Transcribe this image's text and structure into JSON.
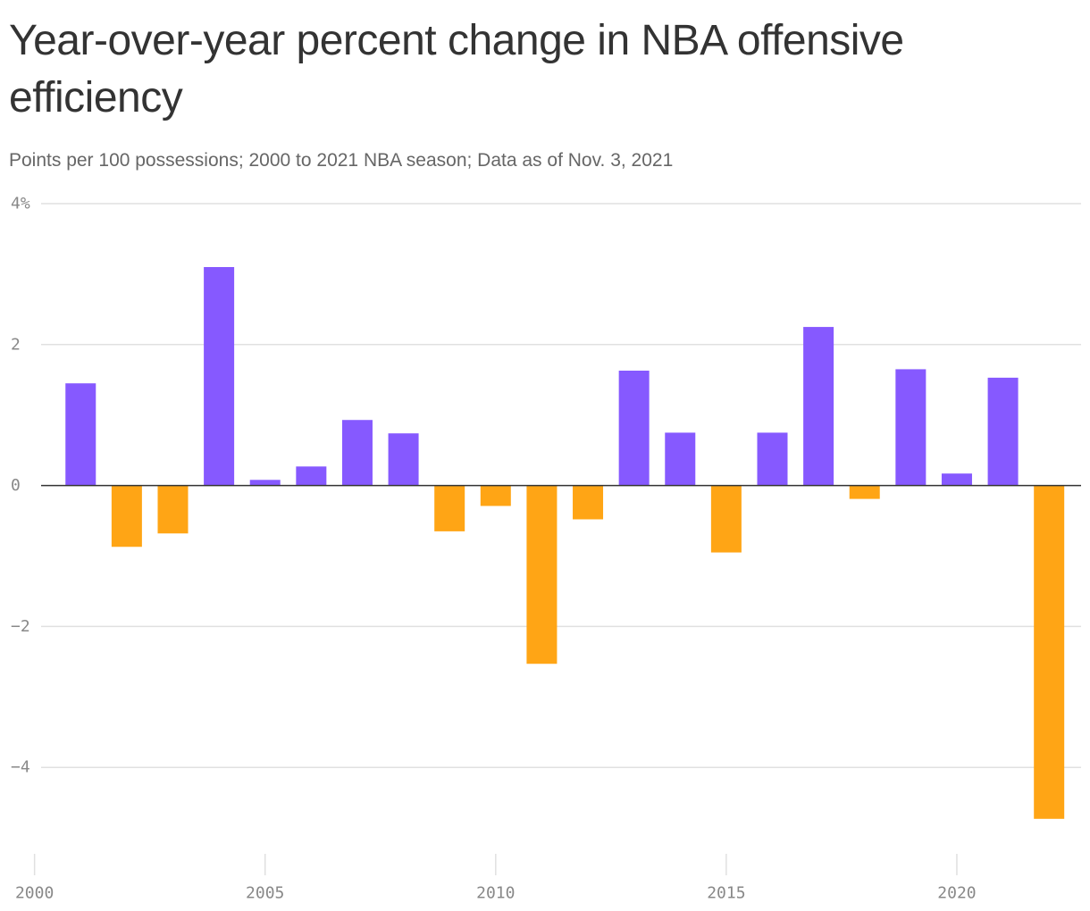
{
  "chart_data": {
    "type": "bar",
    "title": "Year-over-year percent change in NBA offensive efficiency",
    "subtitle": "Points per 100 possessions; 2000 to 2021 NBA season; Data as of Nov. 3, 2021",
    "xlabel": "",
    "ylabel": "",
    "x": [
      2001,
      2002,
      2003,
      2004,
      2005,
      2006,
      2007,
      2008,
      2009,
      2010,
      2011,
      2012,
      2013,
      2014,
      2015,
      2016,
      2017,
      2018,
      2019,
      2020,
      2021,
      2022
    ],
    "values": [
      1.45,
      -0.87,
      -0.68,
      3.1,
      0.08,
      0.27,
      0.93,
      0.74,
      -0.65,
      -0.29,
      -2.53,
      -0.48,
      1.63,
      0.75,
      -0.95,
      0.75,
      2.25,
      -0.19,
      1.65,
      0.17,
      1.53,
      -4.73
    ],
    "ylim": [
      -5.1,
      4.0
    ],
    "xlim": [
      1999.6,
      2022.5
    ],
    "y_ticks": [
      4,
      2,
      0,
      -2,
      -4
    ],
    "y_tick_labels": [
      "4%",
      "2",
      "0",
      "−2",
      "−4"
    ],
    "x_ticks": [
      2000,
      2005,
      2010,
      2015,
      2020
    ],
    "x_tick_labels": [
      "2000",
      "2005",
      "2010",
      "2015",
      "2020"
    ],
    "grid": true,
    "legend": "none",
    "colors": {
      "positive": "#8659ff",
      "negative": "#ffa515",
      "grid": "#e0e0e0",
      "axis": "#333333"
    }
  }
}
